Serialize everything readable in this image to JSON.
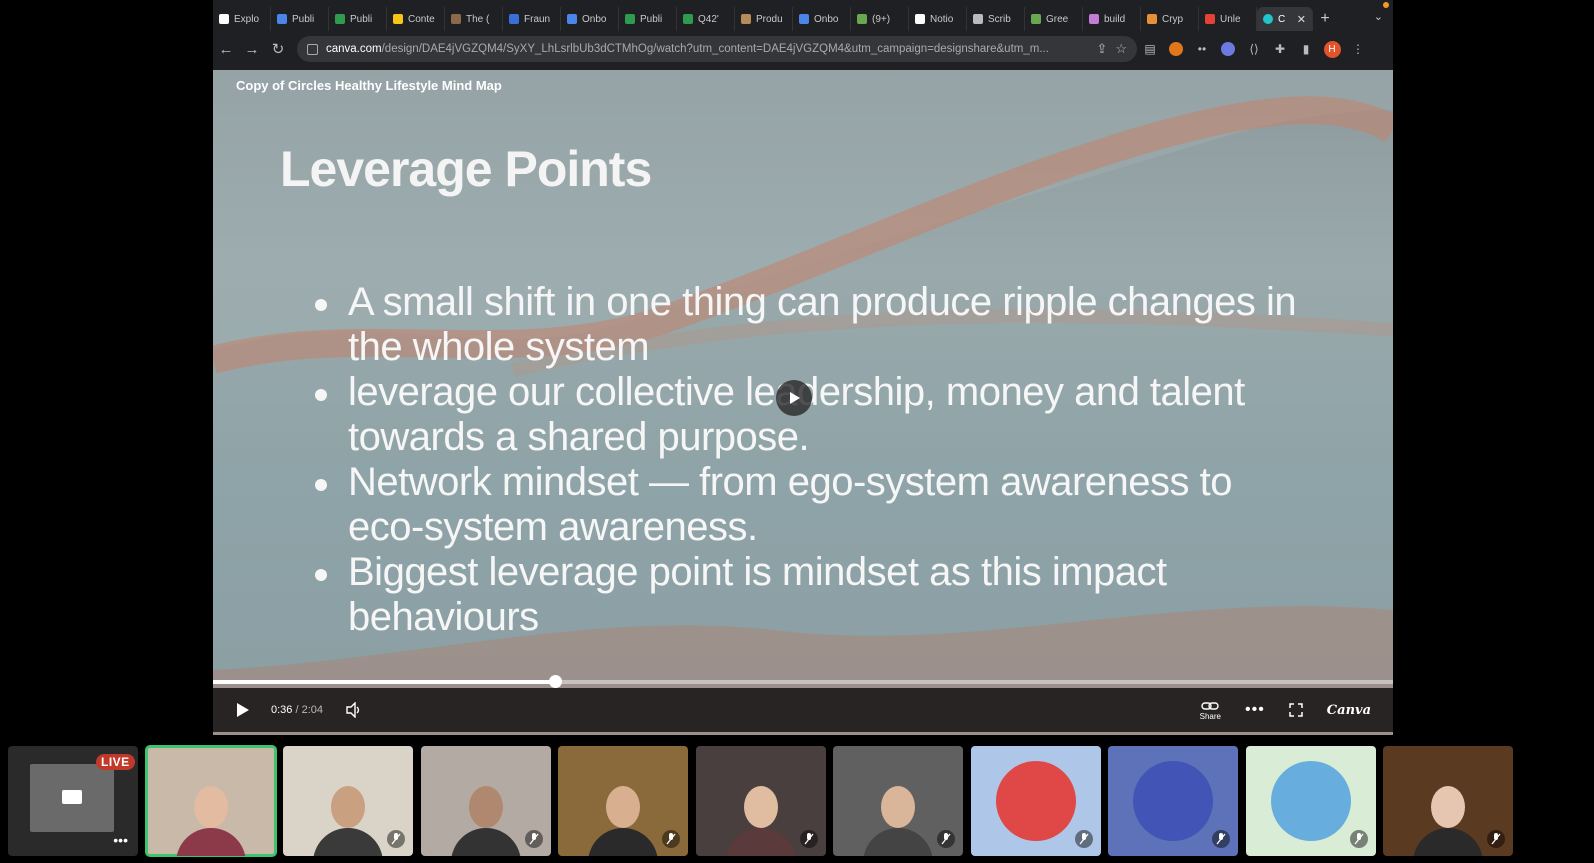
{
  "browser": {
    "tabs": [
      {
        "label": "Explo",
        "color": "#ffffff"
      },
      {
        "label": "Publi",
        "color": "#4a86e8"
      },
      {
        "label": "Publi",
        "color": "#2e9b4f"
      },
      {
        "label": "Conte",
        "color": "#f5c518"
      },
      {
        "label": "The (",
        "color": "#8b6a4a"
      },
      {
        "label": "Fraun",
        "color": "#3b6fd8"
      },
      {
        "label": "Onbo",
        "color": "#4a86e8"
      },
      {
        "label": "Publi",
        "color": "#2e9b4f"
      },
      {
        "label": "Q42'",
        "color": "#2e9b4f"
      },
      {
        "label": "Produ",
        "color": "#b58b5a"
      },
      {
        "label": "Onbo",
        "color": "#4a86e8"
      },
      {
        "label": "(9+)",
        "color": "#6aa84f"
      },
      {
        "label": "Notio",
        "color": "#ffffff"
      },
      {
        "label": "Scrib",
        "color": "#bbbbbb"
      },
      {
        "label": "Gree",
        "color": "#6aa84f"
      },
      {
        "label": "build",
        "color": "#c27bd6"
      },
      {
        "label": "Cryp",
        "color": "#e69138"
      },
      {
        "label": "Unle",
        "color": "#e34234"
      }
    ],
    "active_tab": {
      "label": "C",
      "color": "#20c4cb"
    },
    "url_host": "canva.com",
    "url_path": "/design/DAE4jVGZQM4/SyXY_LhLsrlbUb3dCTMhOg/watch?utm_content=DAE4jVGZQM4&utm_campaign=designshare&utm_m...",
    "profile_initial": "H"
  },
  "player": {
    "design_title": "Copy of Circles Healthy Lifestyle Mind Map",
    "slide_heading": "Leverage Points",
    "bullets": [
      "A small shift in one thing can produce ripple changes in the whole system",
      "leverage our collective leadership, money and talent towards a shared purpose.",
      "Network mindset — from ego-system awareness to eco-system awareness.",
      "Biggest leverage point is mindset as this impact behaviours"
    ],
    "time_current": "0:36",
    "time_total": "2:04",
    "progress_fraction": 0.29,
    "share_label": "Share",
    "brand": "Canva"
  },
  "participants": {
    "live_label": "LIVE",
    "tiles": [
      {
        "kind": "screen",
        "bg": "#2a2a2a"
      },
      {
        "kind": "person",
        "bg": "#c9b9a8",
        "skin": "#e2bba0",
        "shirt": "#8c3a4a",
        "active": true
      },
      {
        "kind": "person",
        "bg": "#d9d3c8",
        "skin": "#c9a080",
        "shirt": "#3a3a3a",
        "muted": true
      },
      {
        "kind": "person",
        "bg": "#b3aba3",
        "skin": "#b08870",
        "shirt": "#333333",
        "muted": true
      },
      {
        "kind": "person",
        "bg": "#8a6a3a",
        "skin": "#d8b090",
        "shirt": "#2a2a2a",
        "muted": true
      },
      {
        "kind": "person",
        "bg": "#4a3f3f",
        "skin": "#e0bca0",
        "shirt": "#5a3a3a",
        "muted": true
      },
      {
        "kind": "person",
        "bg": "#606060",
        "skin": "#d9b59a",
        "shirt": "#444444",
        "muted": true
      },
      {
        "kind": "avatar",
        "bg": "#aec7e8",
        "accent": "#e53935",
        "muted": true
      },
      {
        "kind": "avatar",
        "bg": "#5d72b8",
        "accent": "#3f51b5",
        "muted": true
      },
      {
        "kind": "avatar",
        "bg": "#d9ecd5",
        "accent": "#5aa7e0",
        "muted": true
      },
      {
        "kind": "person",
        "bg": "#5b3a22",
        "skin": "#e6c6b0",
        "shirt": "#2a2a2a",
        "muted": true
      }
    ]
  }
}
